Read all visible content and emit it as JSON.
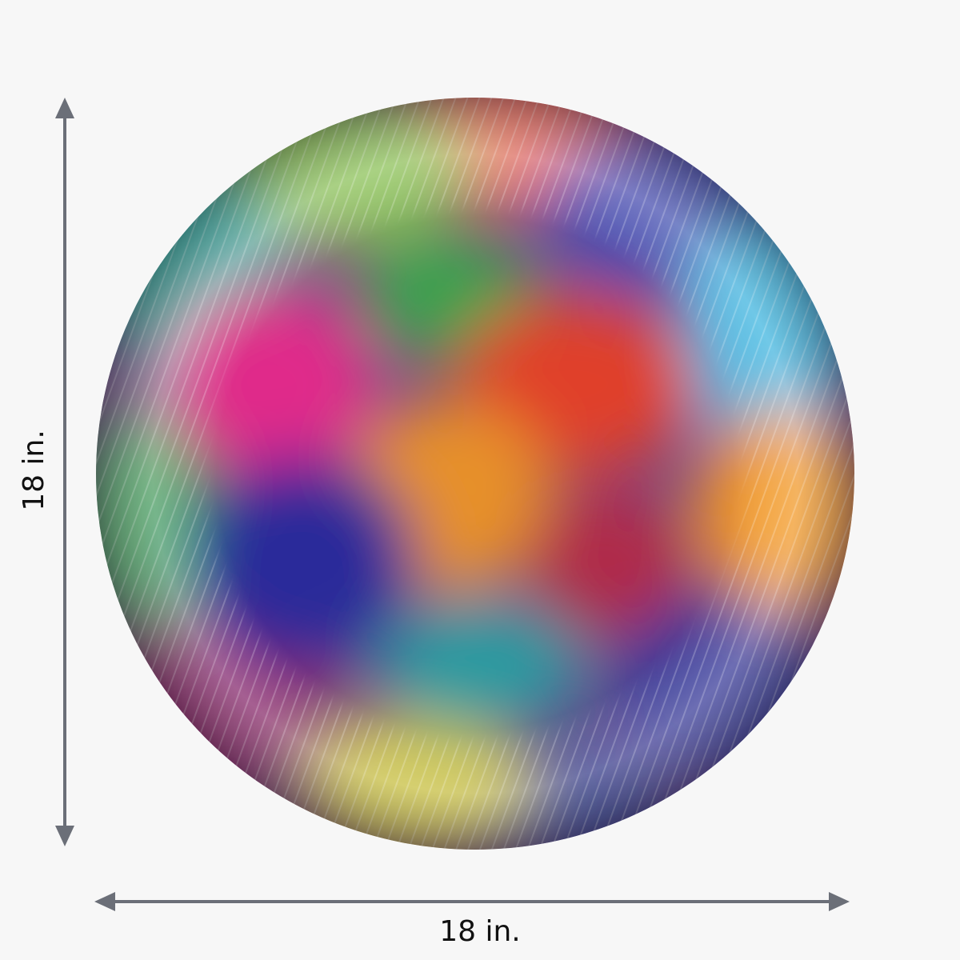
{
  "dimensions": {
    "height": "18 in.",
    "width": "18 in."
  }
}
